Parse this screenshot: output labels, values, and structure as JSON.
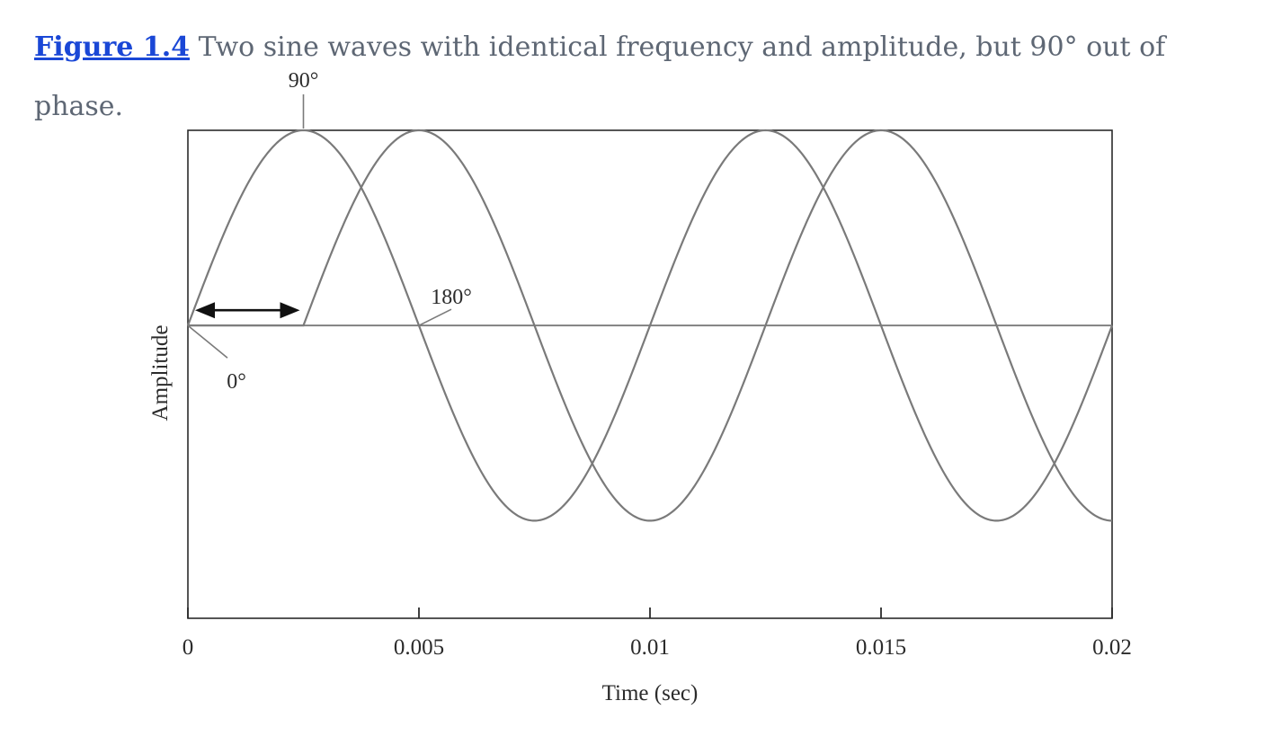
{
  "caption": {
    "figure_label": "Figure 1.4",
    "text": "Two sine waves with identical frequency and amplitude, but 90° out of phase."
  },
  "chart_data": {
    "type": "line",
    "title": "",
    "xlabel": "Time (sec)",
    "ylabel": "Amplitude",
    "xlim": [
      0,
      0.02
    ],
    "ylim": [
      -1.5,
      1.0
    ],
    "x_ticks": [
      0,
      0.005,
      0.01,
      0.015,
      0.02
    ],
    "x_tick_labels": [
      "0",
      "0.005",
      "0.01",
      "0.015",
      "0.02"
    ],
    "grid": false,
    "legend": "none",
    "frequency_hz": 100,
    "amplitude": 1,
    "baseline": 0,
    "series": [
      {
        "phase_offset_deg": 0,
        "start_x": 0
      },
      {
        "phase_offset_deg": 90,
        "start_x": 0.0025
      }
    ],
    "annotations": [
      {
        "text": "90°",
        "x": 0.0025,
        "y": 1.0
      },
      {
        "text": "180°",
        "x": 0.005,
        "y": 0.0
      },
      {
        "text": "0°",
        "x": 0.0,
        "y": 0.0
      }
    ],
    "phase_arrow": {
      "x_start": 0,
      "x_end": 0.0025
    },
    "colors": {
      "line": "#7a7a7a",
      "axis": "#2b2b2b",
      "arrow": "#111111"
    }
  }
}
